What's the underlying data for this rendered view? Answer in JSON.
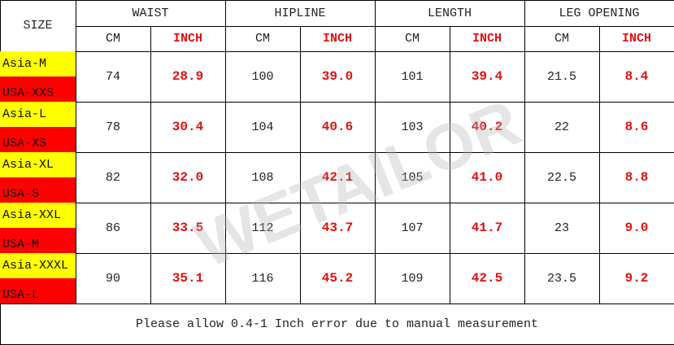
{
  "header": {
    "size_label": "SIZE",
    "groups": [
      {
        "name": "WAIST",
        "units": [
          "CM",
          "INCH"
        ]
      },
      {
        "name": "HIPLINE",
        "units": [
          "CM",
          "INCH"
        ]
      },
      {
        "name": "LENGTH",
        "units": [
          "CM",
          "INCH"
        ]
      },
      {
        "name": "LEG OPENING",
        "units": [
          "CM",
          "INCH"
        ]
      }
    ]
  },
  "rows": [
    {
      "asia": "Asia-M",
      "usa": "USA-XXS",
      "values": [
        "74",
        "28.9",
        "100",
        "39.0",
        "101",
        "39.4",
        "21.5",
        "8.4"
      ]
    },
    {
      "asia": "Asia-L",
      "usa": "USA-XS",
      "values": [
        "78",
        "30.4",
        "104",
        "40.6",
        "103",
        "40.2",
        "22",
        "8.6"
      ]
    },
    {
      "asia": "Asia-XL",
      "usa": "USA-S",
      "values": [
        "82",
        "32.0",
        "108",
        "42.1",
        "105",
        "41.0",
        "22.5",
        "8.8"
      ]
    },
    {
      "asia": "Asia-XXL",
      "usa": "USA-M",
      "values": [
        "86",
        "33.5",
        "112",
        "43.7",
        "107",
        "41.7",
        "23",
        "9.0"
      ]
    },
    {
      "asia": "Asia-XXXL",
      "usa": "USA-L",
      "values": [
        "90",
        "35.1",
        "116",
        "45.2",
        "109",
        "42.5",
        "23.5",
        "9.2"
      ]
    }
  ],
  "footer": {
    "note": "Please allow 0.4-1 Inch error due to manual measurement"
  },
  "watermark": "WETAILOR"
}
